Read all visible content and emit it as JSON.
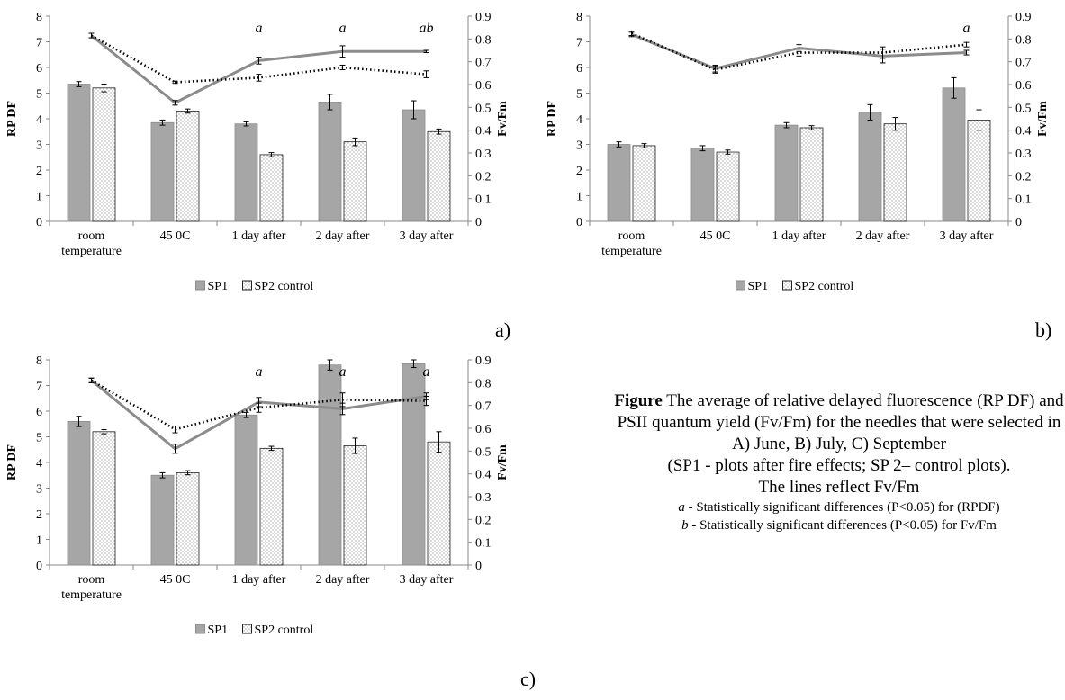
{
  "chart_data": [
    {
      "panel": "a)",
      "type": "bar",
      "categories": [
        "room temperature",
        "45 0C",
        "1 day after",
        "2 day after",
        "3 day after"
      ],
      "ylabel": "RP DF",
      "y2label": "Fv/Fm",
      "ylim": [
        0,
        8
      ],
      "y2lim": [
        0,
        0.9
      ],
      "yticks": [
        "0",
        "1",
        "2",
        "3",
        "4",
        "5",
        "6",
        "7",
        "8"
      ],
      "y2ticks": [
        "0",
        "0.1",
        "0.2",
        "0.3",
        "0.4",
        "0.5",
        "0.6",
        "0.7",
        "0.8",
        "0.9"
      ],
      "bars": [
        {
          "name": "SP1",
          "values": [
            5.35,
            3.85,
            3.8,
            4.65,
            4.35
          ],
          "errors": [
            0.1,
            0.1,
            0.08,
            0.3,
            0.35
          ]
        },
        {
          "name": "SP2 control",
          "values": [
            5.2,
            4.3,
            2.6,
            3.1,
            3.5
          ],
          "errors": [
            0.15,
            0.08,
            0.08,
            0.15,
            0.1
          ]
        }
      ],
      "lines": [
        {
          "style": "solid",
          "values": [
            0.815,
            0.52,
            0.705,
            0.745,
            0.745
          ],
          "errors": [
            0.01,
            0.01,
            0.015,
            0.025,
            0.005
          ]
        },
        {
          "style": "dotted",
          "values": [
            0.815,
            0.61,
            0.63,
            0.675,
            0.645
          ],
          "errors": [
            0.01,
            0.005,
            0.015,
            0.01,
            0.015
          ]
        }
      ],
      "annotations": [
        "",
        "",
        "a",
        "a",
        "ab"
      ],
      "legend": [
        "SP1",
        "SP2 control"
      ]
    },
    {
      "panel": "b)",
      "type": "bar",
      "categories": [
        "room temperature",
        "45 0C",
        "1 day after",
        "2 day after",
        "3 day after"
      ],
      "ylabel": "RP DF",
      "y2label": "Fv/Fm",
      "ylim": [
        0,
        8
      ],
      "y2lim": [
        0,
        0.9
      ],
      "yticks": [
        "0",
        "1",
        "2",
        "3",
        "4",
        "5",
        "6",
        "7",
        "8"
      ],
      "y2ticks": [
        "0",
        "0.1",
        "0.2",
        "0.3",
        "0.4",
        "0.5",
        "0.6",
        "0.7",
        "0.8",
        "0.9"
      ],
      "bars": [
        {
          "name": "SP1",
          "values": [
            3.0,
            2.85,
            3.75,
            4.25,
            5.2
          ],
          "errors": [
            0.1,
            0.1,
            0.1,
            0.3,
            0.4
          ]
        },
        {
          "name": "SP2 control",
          "values": [
            2.95,
            2.7,
            3.65,
            3.8,
            3.95
          ],
          "errors": [
            0.08,
            0.08,
            0.08,
            0.25,
            0.4
          ]
        }
      ],
      "lines": [
        {
          "style": "solid",
          "values": [
            0.82,
            0.67,
            0.76,
            0.725,
            0.74
          ],
          "errors": [
            0.01,
            0.015,
            0.015,
            0.03,
            0.01
          ]
        },
        {
          "style": "dotted",
          "values": [
            0.825,
            0.665,
            0.74,
            0.74,
            0.775
          ],
          "errors": [
            0.01,
            0.015,
            0.015,
            0.025,
            0.01
          ]
        }
      ],
      "annotations": [
        "",
        "",
        "",
        "",
        "a"
      ],
      "legend": [
        "SP1",
        "SP2 control"
      ]
    },
    {
      "panel": "c)",
      "type": "bar",
      "categories": [
        "room temperature",
        "45 0C",
        "1 day after",
        "2 day after",
        "3 day after"
      ],
      "ylabel": "RP DF",
      "y2label": "Fv/Fm",
      "ylim": [
        0,
        8
      ],
      "y2lim": [
        0,
        0.9
      ],
      "yticks": [
        "0",
        "1",
        "2",
        "3",
        "4",
        "5",
        "6",
        "7",
        "8"
      ],
      "y2ticks": [
        "0",
        "0.1",
        "0.2",
        "0.3",
        "0.4",
        "0.5",
        "0.6",
        "0.7",
        "0.8",
        "0.9"
      ],
      "bars": [
        {
          "name": "SP1",
          "values": [
            5.6,
            3.5,
            5.85,
            7.8,
            7.85
          ],
          "errors": [
            0.2,
            0.1,
            0.1,
            0.2,
            0.15
          ]
        },
        {
          "name": "SP2 control",
          "values": [
            5.2,
            3.6,
            4.55,
            4.65,
            4.8
          ],
          "errors": [
            0.08,
            0.08,
            0.08,
            0.3,
            0.4
          ]
        }
      ],
      "lines": [
        {
          "style": "solid",
          "values": [
            0.81,
            0.51,
            0.715,
            0.685,
            0.74
          ],
          "errors": [
            0.01,
            0.02,
            0.02,
            0.025,
            0.015
          ]
        },
        {
          "style": "dotted",
          "values": [
            0.81,
            0.595,
            0.69,
            0.725,
            0.72
          ],
          "errors": [
            0.01,
            0.015,
            0.02,
            0.03,
            0.02
          ]
        }
      ],
      "annotations": [
        "",
        "",
        "a",
        "a",
        "a"
      ],
      "legend": [
        "SP1",
        "SP2 control"
      ]
    }
  ],
  "caption": {
    "bold": "Figure",
    "text": "The average of relative delayed fluorescence (RP DF) and PSII quantum yield (Fv/Fm) for the needles that were selected in A) June, B) July, C) September",
    "paren": "(SP1 - plots after fire effects; SP 2– control plots).",
    "lines_note": "The lines reflect Fv/Fm",
    "note_a_mark": "a",
    "note_a": " - Statistically significant differences (P<0.05) for (RPDF)",
    "note_b_mark": "b",
    "note_b": " - Statistically significant differences (P<0.05) for Fv/Fm"
  }
}
